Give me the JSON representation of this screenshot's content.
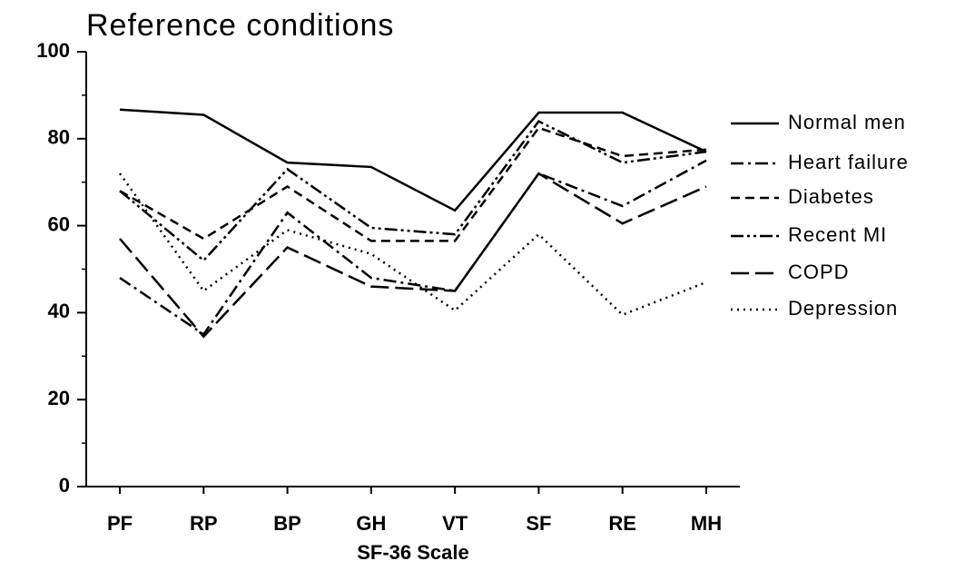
{
  "chart_data": {
    "type": "line",
    "title": "Reference conditions",
    "x_label": "SF-36 Scale",
    "categories": [
      "PF",
      "RP",
      "BP",
      "GH",
      "VT",
      "SF",
      "RE",
      "MH"
    ],
    "ylim": [
      0,
      100
    ],
    "yticks": [
      0,
      20,
      40,
      60,
      80,
      100
    ],
    "series": [
      {
        "name": "Normal men",
        "color": "#000000",
        "dash": "solid",
        "values": [
          86.7,
          85.5,
          74.5,
          73.5,
          63.5,
          86,
          86,
          77
        ]
      },
      {
        "name": "Heart failure",
        "color": "#000000",
        "dash": "dash-dot",
        "values": [
          48,
          35,
          63,
          48,
          45,
          72,
          64.5,
          75
        ]
      },
      {
        "name": "Diabetes",
        "color": "#000000",
        "dash": "dashed",
        "values": [
          68,
          57,
          69,
          56.5,
          56.5,
          82.5,
          76,
          77.5
        ]
      },
      {
        "name": "Recent MI",
        "color": "#000000",
        "dash": "dash-dot-dot",
        "values": [
          68,
          52,
          73,
          59.5,
          58,
          84,
          74.5,
          77
        ]
      },
      {
        "name": "COPD",
        "color": "#000000",
        "dash": "long-dash",
        "values": [
          57,
          34.5,
          55,
          46,
          45,
          72,
          60.5,
          69
        ]
      },
      {
        "name": "Depression",
        "color": "#000000",
        "dash": "dotted",
        "values": [
          72,
          45,
          59,
          53.5,
          40.5,
          58,
          39.5,
          47
        ]
      }
    ]
  }
}
